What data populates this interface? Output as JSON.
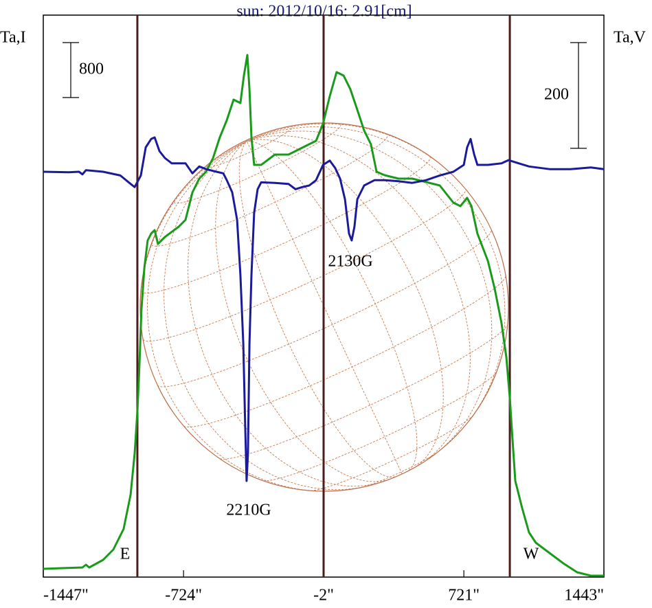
{
  "chart_data": {
    "type": "line",
    "title": "sun: 2012/10/16: 2.91[cm]",
    "ylabel": "Ta,I",
    "y2label": "Ta,V",
    "xlim": [
      -1447,
      1443
    ],
    "xticks": [
      {
        "value": -1447,
        "label": "-1447\""
      },
      {
        "value": -724,
        "label": "-724\""
      },
      {
        "value": -2,
        "label": "-2\""
      },
      {
        "value": 721,
        "label": "721\""
      },
      {
        "value": 1443,
        "label": "1443\""
      }
    ],
    "ylim": [
      0,
      8180
    ],
    "y2lim": [
      -767,
      296.4
    ],
    "scale_bars": [
      {
        "value": 800,
        "axis": "y"
      },
      {
        "value": 200,
        "axis": "y2"
      }
    ],
    "vlines": [
      -962,
      -2,
      958
    ],
    "annotations": [
      "E",
      "W",
      "2210G",
      "2130G"
    ],
    "series": [
      {
        "color": "#1a9a1a",
        "axis": "y",
        "x": [
          -1447,
          -1351,
          -1245,
          -1227,
          -1210,
          -1139,
          -1086,
          -1033,
          -997,
          -976,
          -962,
          -951,
          -941,
          -926,
          -909,
          -891,
          -873,
          -856,
          -820,
          -749,
          -714,
          -678,
          -643,
          -608,
          -572,
          -537,
          -501,
          -466,
          -431,
          -413,
          -395,
          -384,
          -374,
          -360,
          -324,
          -253,
          -183,
          -112,
          -41,
          -5,
          30,
          65,
          101,
          136,
          172,
          207,
          242,
          271,
          313,
          384,
          455,
          526,
          597,
          667,
          703,
          738,
          760,
          791,
          845,
          880,
          915,
          940,
          958,
          972,
          986,
          1022,
          1057,
          1092,
          1163,
          1234,
          1305,
          1376,
          1443
        ],
        "values": [
          120,
          130,
          140,
          180,
          140,
          250,
          400,
          700,
          1200,
          1800,
          2400,
          3100,
          3900,
          4500,
          4900,
          5000,
          5050,
          4850,
          4950,
          5100,
          5200,
          5600,
          5800,
          5900,
          6100,
          6400,
          6650,
          6950,
          6900,
          7300,
          7600,
          7100,
          6400,
          6000,
          6000,
          6150,
          6150,
          6250,
          6350,
          6600,
          7000,
          7350,
          7300,
          7100,
          6800,
          6500,
          6300,
          5900,
          5850,
          5800,
          5800,
          5750,
          5700,
          5450,
          5400,
          5520,
          5400,
          5000,
          4600,
          4200,
          3700,
          3200,
          2600,
          2000,
          1400,
          1000,
          650,
          500,
          350,
          200,
          70,
          20,
          20
        ]
      },
      {
        "color": "#1a1a9a",
        "axis": "y2",
        "x": [
          -1447,
          -1316,
          -1263,
          -1245,
          -1227,
          -1139,
          -1050,
          -997,
          -976,
          -944,
          -919,
          -891,
          -873,
          -848,
          -820,
          -785,
          -714,
          -678,
          -643,
          -608,
          -554,
          -519,
          -501,
          -473,
          -448,
          -431,
          -416,
          -406,
          -399,
          -392,
          -384,
          -374,
          -360,
          -342,
          -324,
          -253,
          -183,
          -147,
          -112,
          -76,
          -41,
          -5,
          30,
          58,
          83,
          108,
          129,
          143,
          157,
          172,
          207,
          260,
          313,
          384,
          455,
          526,
          597,
          667,
          721,
          738,
          756,
          774,
          791,
          845,
          915,
          951,
          986,
          1057,
          1163,
          1270,
          1376,
          1443
        ],
        "values": [
          0,
          -1,
          0,
          -5,
          3,
          0,
          -7,
          -23,
          -29,
          -7,
          46,
          62,
          65,
          39,
          26,
          16,
          16,
          -3,
          10,
          5,
          0,
          -3,
          -16,
          -39,
          -91,
          -195,
          -325,
          -481,
          -585,
          -533,
          -325,
          -195,
          -78,
          -33,
          -20,
          -21,
          -23,
          -33,
          -29,
          -26,
          -16,
          13,
          21,
          7,
          -13,
          -52,
          -117,
          -130,
          -104,
          -52,
          -26,
          -16,
          -16,
          -18,
          -21,
          -16,
          -7,
          0,
          13,
          46,
          62,
          33,
          13,
          13,
          16,
          22,
          18,
          10,
          5,
          5,
          8,
          5
        ]
      }
    ]
  }
}
